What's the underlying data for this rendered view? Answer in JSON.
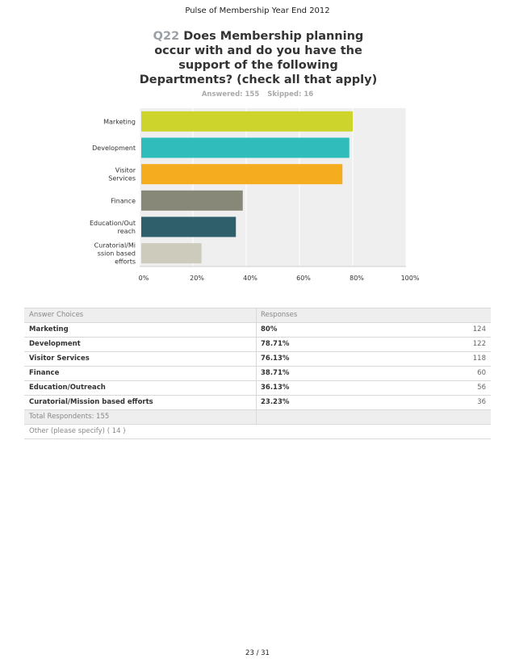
{
  "header": {
    "report_title": "Pulse of Membership Year End 2012"
  },
  "question": {
    "number": "Q22",
    "title_lines": [
      "Does Membership planning",
      "occur with and do you have the",
      "support of the following",
      "Departments? (check all that apply)"
    ],
    "answered": "Answered: 155",
    "skipped": "Skipped: 16"
  },
  "chart_data": {
    "type": "bar",
    "orientation": "horizontal",
    "title": "Q22 Does Membership planning occur with and do you have the support of the following Departments? (check all that apply)",
    "categories": [
      "Marketing",
      "Development",
      "Visitor Services",
      "Finance",
      "Education/Outreach",
      "Curatorial/Mission based efforts"
    ],
    "category_label_lines": [
      [
        "Marketing"
      ],
      [
        "Development"
      ],
      [
        "Visitor",
        "Services"
      ],
      [
        "Finance"
      ],
      [
        "Education/Out",
        "reach"
      ],
      [
        "Curatorial/Mi",
        "ssion based",
        "efforts"
      ]
    ],
    "values": [
      80,
      78.71,
      76.13,
      38.71,
      36.13,
      23.23
    ],
    "colors": [
      "#cdd42c",
      "#31bcbc",
      "#f5ad1f",
      "#888878",
      "#2e5f6b",
      "#cdcbbc"
    ],
    "xlim": [
      0,
      100
    ],
    "x_ticks": [
      0,
      20,
      40,
      60,
      80,
      100
    ],
    "x_tick_labels": [
      "0%",
      "20%",
      "40%",
      "60%",
      "80%",
      "100%"
    ],
    "xlabel": "",
    "ylabel": "",
    "grid": true,
    "background": "#efefef"
  },
  "table": {
    "headers": [
      "Answer Choices",
      "Responses",
      ""
    ],
    "rows": [
      {
        "choice": "Marketing",
        "percent": "80%",
        "count": "124"
      },
      {
        "choice": "Development",
        "percent": "78.71%",
        "count": "122"
      },
      {
        "choice": "Visitor Services",
        "percent": "76.13%",
        "count": "118"
      },
      {
        "choice": "Finance",
        "percent": "38.71%",
        "count": "60"
      },
      {
        "choice": "Education/Outreach",
        "percent": "36.13%",
        "count": "56"
      },
      {
        "choice": "Curatorial/Mission based efforts",
        "percent": "23.23%",
        "count": "36"
      }
    ],
    "total": "Total Respondents: 155",
    "other": "Other (please specify) ( 14 )"
  },
  "footer": {
    "page": "23 / 31"
  }
}
